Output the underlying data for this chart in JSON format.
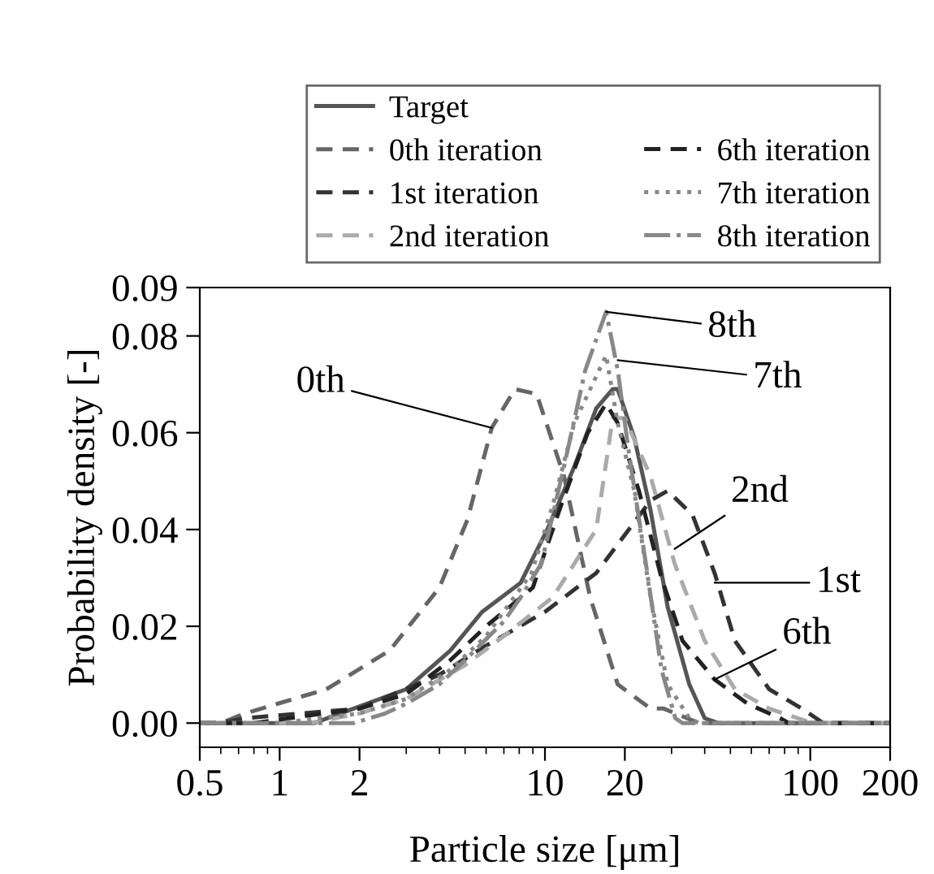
{
  "chart_data": {
    "type": "line",
    "xlabel": "Particle size [μm]",
    "ylabel": "Probability density [-]",
    "log": "x",
    "xlim": [
      0.5,
      200
    ],
    "xticks": [
      0.5,
      1,
      2,
      10,
      20,
      100,
      200
    ],
    "ylim": [
      -0.005,
      0.09
    ],
    "yticks": [
      {
        "value": 0,
        "label": "0.00"
      },
      {
        "value": 0.02,
        "label": "0.02"
      },
      {
        "value": 0.04,
        "label": "0.04"
      },
      {
        "value": 0.06,
        "label": "0.06"
      },
      {
        "value": 0.08,
        "label": "0.08"
      },
      {
        "value": 0.09,
        "label": "0.09"
      }
    ],
    "grid": false,
    "legend": "top",
    "marker": "none",
    "series": [
      {
        "name": "Target",
        "color": "#555555",
        "line_style": "solid",
        "x": [
          0.5,
          1.35,
          1.9,
          3.0,
          4.4,
          5.8,
          8.1,
          10.2,
          12.9,
          15.6,
          18,
          18.8,
          21.7,
          25,
          29,
          35,
          40,
          45,
          200
        ],
        "values": [
          0,
          0,
          0.003,
          0.007,
          0.015,
          0.023,
          0.029,
          0.04,
          0.053,
          0.065,
          0.069,
          0.069,
          0.059,
          0.044,
          0.024,
          0.008,
          0.001,
          0,
          0
        ]
      },
      {
        "name": "0th iteration",
        "color": "#666666",
        "line_style": "dashed",
        "x": [
          0.5,
          0.6,
          0.74,
          1.5,
          2.6,
          4.0,
          5.1,
          6.3,
          7.7,
          9.3,
          11.8,
          14.8,
          18.8,
          25,
          28,
          38,
          200
        ],
        "values": [
          0,
          0,
          0.002,
          0.007,
          0.015,
          0.028,
          0.042,
          0.061,
          0.069,
          0.068,
          0.051,
          0.026,
          0.008,
          0.003,
          0.003,
          0,
          0
        ]
      },
      {
        "name": "1st iteration",
        "color": "#333333",
        "line_style": "dashed",
        "x": [
          0.5,
          0.6,
          0.74,
          2,
          4,
          6,
          10,
          15.6,
          25,
          29,
          36,
          43.6,
          52,
          70,
          93,
          112,
          200
        ],
        "values": [
          0,
          0,
          0.001,
          0.003,
          0.01,
          0.016,
          0.023,
          0.031,
          0.046,
          0.048,
          0.043,
          0.031,
          0.017,
          0.007,
          0.003,
          0,
          0
        ]
      },
      {
        "name": "2nd iteration",
        "color": "#aaaaaa",
        "line_style": "dashed",
        "x": [
          0.5,
          1.3,
          2,
          3,
          5,
          7,
          10.7,
          15.6,
          18,
          20,
          25,
          30.8,
          40,
          52,
          70,
          102,
          200
        ],
        "values": [
          0,
          0,
          0.002,
          0.005,
          0.012,
          0.018,
          0.026,
          0.04,
          0.063,
          0.063,
          0.051,
          0.033,
          0.017,
          0.007,
          0.003,
          0,
          0
        ]
      },
      {
        "name": "6th iteration",
        "color": "#222222",
        "line_style": "dashed",
        "x": [
          0.5,
          0.8,
          2,
          3,
          4.4,
          6,
          9,
          11.5,
          14.5,
          17,
          18.8,
          22.6,
          27.5,
          33,
          43.6,
          58,
          77,
          83,
          200
        ],
        "values": [
          0,
          0,
          0.003,
          0.006,
          0.013,
          0.02,
          0.028,
          0.045,
          0.06,
          0.066,
          0.062,
          0.048,
          0.03,
          0.017,
          0.009,
          0.004,
          0.001,
          0,
          0
        ]
      },
      {
        "name": "7th iteration",
        "color": "#888888",
        "line_style": "dotted",
        "x": [
          0.5,
          1.0,
          2,
          3,
          4.4,
          6,
          8.9,
          10.7,
          12.9,
          17,
          18.8,
          21.7,
          25,
          29,
          35,
          38,
          200
        ],
        "values": [
          0,
          0,
          0.002,
          0.005,
          0.011,
          0.018,
          0.031,
          0.045,
          0.062,
          0.076,
          0.062,
          0.048,
          0.026,
          0.008,
          0.001,
          0,
          0
        ]
      },
      {
        "name": "8th iteration",
        "color": "#888888",
        "line_style": "dashdot",
        "x": [
          0.5,
          1.9,
          2.5,
          3,
          4,
          5,
          7,
          8.1,
          9.7,
          11.8,
          14.2,
          17,
          18.8,
          20.7,
          24,
          27.5,
          31,
          33,
          200
        ],
        "values": [
          0,
          0,
          0.002,
          0.004,
          0.008,
          0.013,
          0.021,
          0.026,
          0.033,
          0.053,
          0.073,
          0.085,
          0.073,
          0.056,
          0.033,
          0.011,
          0.001,
          0,
          0
        ]
      }
    ],
    "annotations": [
      {
        "text": "0th",
        "x": 6.3,
        "y": 0.061
      },
      {
        "text": "8th",
        "x": 17,
        "y": 0.085
      },
      {
        "text": "7th",
        "x": 18.8,
        "y": 0.075
      },
      {
        "text": "2nd",
        "x": 30.8,
        "y": 0.036
      },
      {
        "text": "1st",
        "x": 43.6,
        "y": 0.029
      },
      {
        "text": "6th",
        "x": 43.6,
        "y": 0.009
      }
    ]
  }
}
